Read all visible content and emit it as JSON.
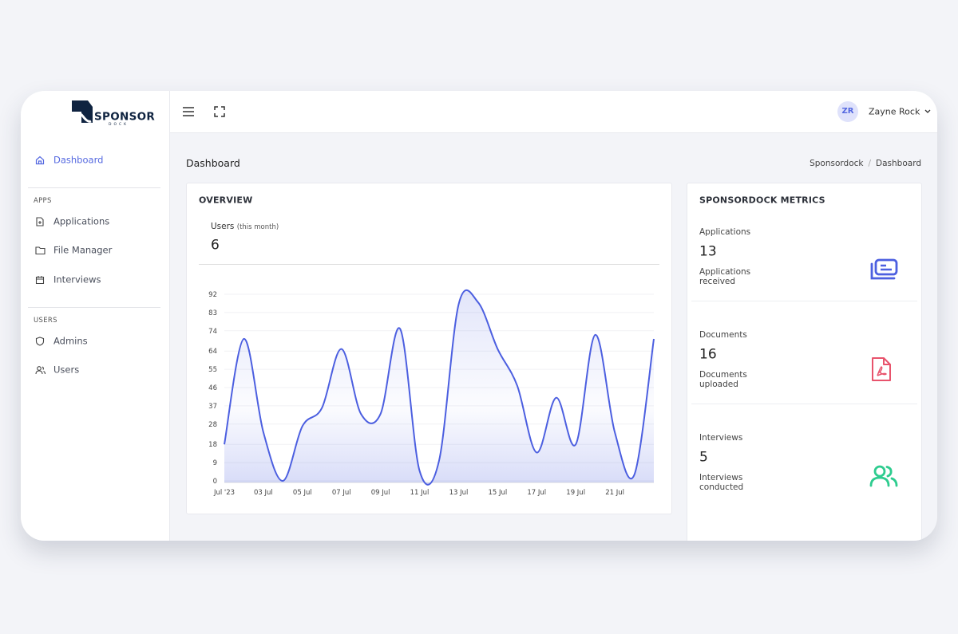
{
  "sidebar": {
    "logo": {
      "word": "SPONSOR",
      "sub": "DOCK"
    },
    "nav": [
      "Dashboard"
    ],
    "sections": [
      {
        "title": "APPS",
        "items": [
          "Applications",
          "File Manager",
          "Interviews"
        ]
      },
      {
        "title": "USERS",
        "items": [
          "Admins",
          "Users"
        ]
      }
    ]
  },
  "header": {
    "initials": "ZR",
    "user": "Zayne Rock"
  },
  "page": {
    "title": "Dashboard",
    "breadcrumb": [
      "Sponsordock",
      "Dashboard"
    ]
  },
  "overview": {
    "title": "OVERVIEW",
    "stat_label": "Users",
    "stat_note": "(this month)",
    "stat_value": 6
  },
  "metrics": {
    "title": "SPONSORDOCK METRICS",
    "items": [
      {
        "label": "Applications",
        "value": 13,
        "caption": "Applications received"
      },
      {
        "label": "Documents",
        "value": 16,
        "caption": "Documents uploaded"
      },
      {
        "label": "Interviews",
        "value": 5,
        "caption": "Interviews conducted"
      }
    ]
  },
  "chart_data": {
    "type": "area",
    "categories": [
      "Jul '23",
      null,
      "03 Jul",
      null,
      "05 Jul",
      null,
      "07 Jul",
      null,
      "09 Jul",
      null,
      "11 Jul",
      null,
      "13 Jul",
      null,
      "15 Jul",
      null,
      "17 Jul",
      null,
      "19 Jul",
      null,
      "21 Jul",
      null,
      null
    ],
    "values": [
      18,
      70,
      24,
      0,
      27,
      36,
      65,
      33,
      33,
      75,
      5,
      10,
      87,
      88,
      65,
      47,
      14,
      41,
      18,
      72,
      24,
      3,
      70
    ],
    "color": "#4c5fe0",
    "ylim": [
      0,
      92
    ],
    "yticks": [
      0,
      9,
      18,
      28,
      37,
      46,
      55,
      64,
      74,
      83,
      92
    ],
    "grid": true
  }
}
